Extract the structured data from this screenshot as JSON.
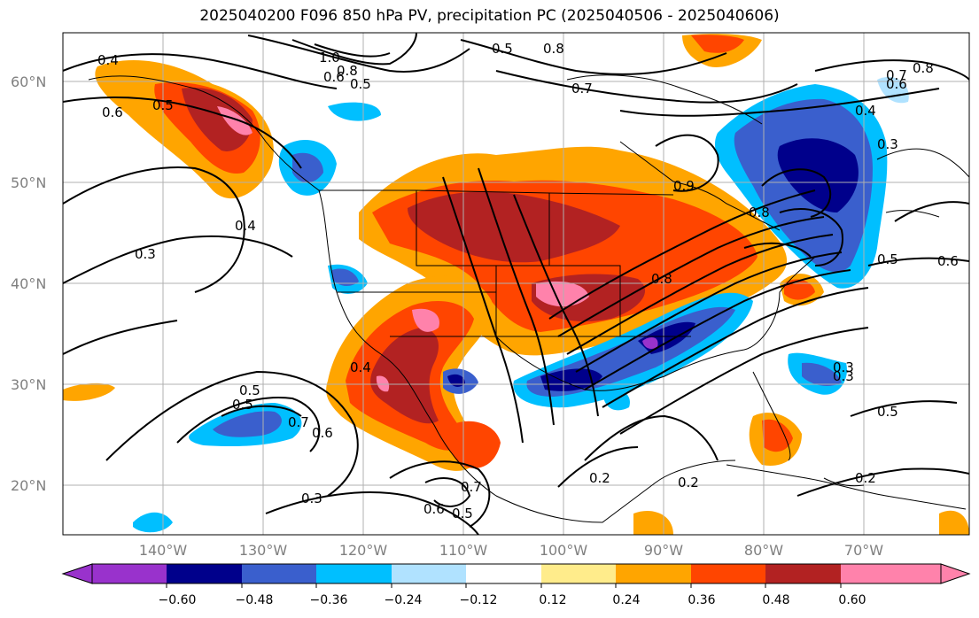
{
  "title": "2025040200 F096 850 hPa PV, precipitation PC (2025040506 - 2025040606)",
  "map": {
    "lat_labels": [
      "60°N",
      "50°N",
      "40°N",
      "30°N",
      "20°N"
    ],
    "lon_labels": [
      "140°W",
      "130°W",
      "120°W",
      "110°W",
      "100°W",
      "90°W",
      "80°W",
      "70°W"
    ],
    "contour_labels": [
      "0.4",
      "0.6",
      "0.5",
      "1.0",
      "0.8",
      "0.6",
      "0.5",
      "0.8",
      "0.5",
      "0.7",
      "0.7",
      "0.8",
      "0.4",
      "0.3",
      "0.3",
      "0.4",
      "0.5",
      "0.7",
      "0.6",
      "0.8",
      "0.9",
      "0.8",
      "0.6",
      "0.5",
      "0.6",
      "0.3",
      "0.4",
      "0.5",
      "0.2",
      "0.2",
      "0.3",
      "0.6",
      "0.5",
      "0.7",
      "0.3",
      "0.2",
      "0.5"
    ]
  },
  "colorbar": {
    "ticks": [
      "−0.60",
      "−0.48",
      "−0.36",
      "−0.24",
      "−0.12",
      "0.12",
      "0.24",
      "0.36",
      "0.48",
      "0.60"
    ],
    "colors": [
      "#9932cc",
      "#00008b",
      "#3a5fcd",
      "#00bfff",
      "#b0e2ff",
      "#ffffff",
      "#ffec8b",
      "#ffa500",
      "#ff4500",
      "#b22222",
      "#ff82ab"
    ]
  }
}
